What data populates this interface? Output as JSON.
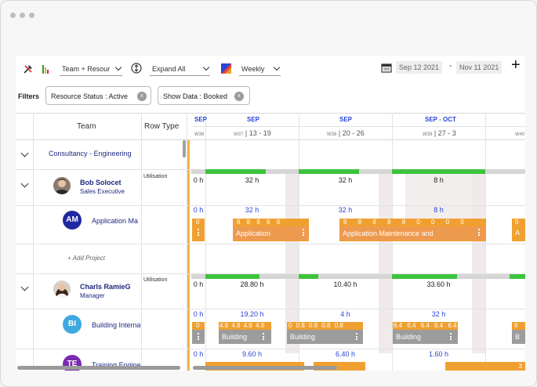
{
  "toolbar": {
    "group_select": "Team + Resour",
    "expand_select": "Expand All",
    "view_select": "Weekly",
    "date_from": "Sep 12 2021",
    "date_sep": "-",
    "date_to": "Nov 11 2021",
    "add_label": "+"
  },
  "filters": {
    "label": "Filters",
    "chip1": "Resource Status : Active",
    "chip2": "Show Data : Booked",
    "chip_x": "x"
  },
  "columns": {
    "team": "Team",
    "row_type": "Row Type"
  },
  "timeline": {
    "months": [
      "SEP",
      "SEP",
      "SEP - OCT"
    ],
    "weeks": [
      {
        "no": "W36",
        "range": ""
      },
      {
        "no": "W37",
        "range": "13 - 19"
      },
      {
        "no": "W38",
        "range": "20 - 26"
      },
      {
        "no": "W39",
        "range": "27 - 3"
      },
      {
        "no": "W40",
        "range": ""
      }
    ]
  },
  "rows": {
    "team_name": "Consultancy - Engineering",
    "r1": {
      "name": "Bob Solocet",
      "role": "Sales Executive",
      "row_type": "Utilisation",
      "hours": [
        "0 h",
        "32 h",
        "32 h",
        "8 h"
      ],
      "project": {
        "initials": "AM",
        "name": "Application Ma",
        "hours": [
          "0 h",
          "32 h",
          "32 h",
          "8 h"
        ],
        "bar1_label": "Application",
        "bar2_label": "Application Maintenance and",
        "bar1_nums": "8 8 8 8 8",
        "bar2_nums": "8 8 8 8 8 0 0 0 0",
        "zero": "0",
        "edge": "A"
      },
      "add_project": "+ Add Project"
    },
    "r2": {
      "name": "Charls RamieG",
      "role": "Manager",
      "row_type": "Utilisation",
      "hours": [
        "0 h",
        "28.80 h",
        "10.40 h",
        "33.60 h"
      ],
      "project1": {
        "initials": "BI",
        "name": "Building Interna",
        "hours": [
          "0 h",
          "19.20 h",
          "4 h",
          "32 h"
        ],
        "bar_label": "Building",
        "nums_a": "4.8 4.8 4.8 4.8",
        "nums_b": "0 0.8 0.8 0.8 0.8",
        "nums_c": "6.4 6.4 6.4 6.4 6.4",
        "zero": "0",
        "edge": "B",
        "edge_num": "6"
      },
      "project2": {
        "initials": "TE",
        "name": "Training Engine",
        "hours": [
          "0 h",
          "9.60 h",
          "6.40 h",
          "1.60 h"
        ],
        "edge_num": "3"
      }
    }
  },
  "colors": {
    "accent_blue": "#2a43d6",
    "orange": "#f0a030",
    "green": "#3cc43c",
    "today_line": "#f5b342"
  }
}
